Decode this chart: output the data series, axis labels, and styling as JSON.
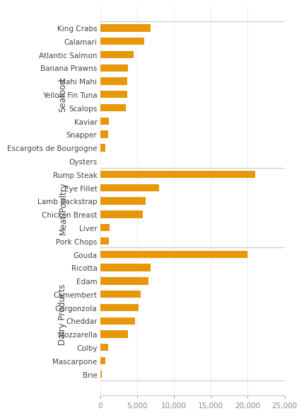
{
  "groups": [
    {
      "name": "Seafood",
      "items": [
        {
          "label": "King Crabs",
          "value": 6800
        },
        {
          "label": "Calamari",
          "value": 6000
        },
        {
          "label": "Atlantic Salmon",
          "value": 4500
        },
        {
          "label": "Banana Prawns",
          "value": 3800
        },
        {
          "label": "Mahi Mahi",
          "value": 3700
        },
        {
          "label": "Yellow Fin Tuna",
          "value": 3700
        },
        {
          "label": "Scalops",
          "value": 3500
        },
        {
          "label": "Kaviar",
          "value": 1200
        },
        {
          "label": "Snapper",
          "value": 1100
        },
        {
          "label": "Escargots de Bourgogne",
          "value": 700
        },
        {
          "label": "Oysters",
          "value": 50
        }
      ]
    },
    {
      "name": "Meat/Poultry",
      "items": [
        {
          "label": "Rump Steak",
          "value": 21000
        },
        {
          "label": "Eye Fillet",
          "value": 8000
        },
        {
          "label": "Lamb Backstrap",
          "value": 6200
        },
        {
          "label": "Chicken Breast",
          "value": 5800
        },
        {
          "label": "Liver",
          "value": 1300
        },
        {
          "label": "Pork Chops",
          "value": 1200
        }
      ]
    },
    {
      "name": "Dairy Products",
      "items": [
        {
          "label": "Gouda",
          "value": 20000
        },
        {
          "label": "Ricotta",
          "value": 6800
        },
        {
          "label": "Edam",
          "value": 6500
        },
        {
          "label": "Camembert",
          "value": 5500
        },
        {
          "label": "Gorgonzola",
          "value": 5200
        },
        {
          "label": "Cheddar",
          "value": 4700
        },
        {
          "label": "Mozzarella",
          "value": 3800
        },
        {
          "label": "Colby",
          "value": 1100
        },
        {
          "label": "Mascarpone",
          "value": 700
        },
        {
          "label": "Brie",
          "value": 200
        }
      ]
    }
  ],
  "bar_color": "#E8960A",
  "background_color": "#FFFFFF",
  "border_color": "#CCCCCC",
  "text_color": "#444444",
  "xlim": [
    0,
    25000
  ],
  "xticks": [
    0,
    5000,
    10000,
    15000,
    20000,
    25000
  ],
  "xtick_labels": [
    "0",
    "5,000",
    "10,000",
    "15,000",
    "20,000",
    "25,000"
  ],
  "group_font_size": 8.5,
  "tick_font_size": 7.5,
  "label_font_size": 7.5
}
